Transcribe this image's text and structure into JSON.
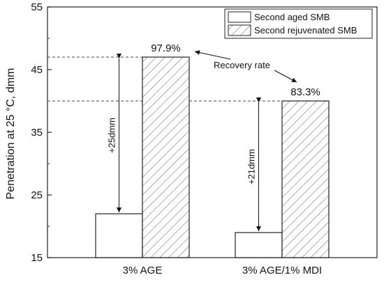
{
  "chart_data": {
    "type": "bar",
    "categories": [
      "3% AGE",
      "3% AGE/1% MDI"
    ],
    "series": [
      {
        "name": "Second aged SMB",
        "values": [
          22,
          19
        ],
        "fill": "#ffffff",
        "pattern": "none"
      },
      {
        "name": "Second rejuvenated SMB",
        "values": [
          47,
          40
        ],
        "fill": "#ffffff",
        "pattern": "diagonal-hatch"
      }
    ],
    "title": "",
    "xlabel": "",
    "ylabel": "Penetration at 25 °C, dmm",
    "ylim": [
      15,
      55
    ],
    "yticks": [
      15,
      25,
      35,
      45,
      55
    ],
    "legend_position": "top-right",
    "grid": false,
    "reference_lines": [
      47,
      40
    ],
    "recovery_rates": [
      "97.9%",
      "83.3%"
    ],
    "differences": [
      "+25dmm",
      "+21dmm"
    ],
    "recovery_label": "Recovery rate"
  }
}
